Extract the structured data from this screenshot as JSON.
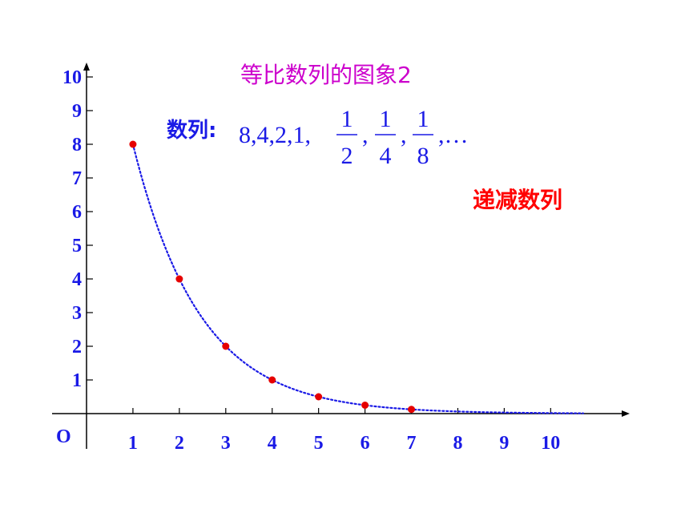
{
  "chart_data": {
    "type": "scatter",
    "title": "等比数列的图象2",
    "origin_label": "O",
    "x_ticks": [
      "1",
      "2",
      "3",
      "4",
      "5",
      "6",
      "7",
      "8",
      "9",
      "10"
    ],
    "y_ticks": [
      "1",
      "2",
      "3",
      "4",
      "5",
      "6",
      "7",
      "8",
      "9",
      "10"
    ],
    "xlim": [
      0,
      11.6
    ],
    "ylim": [
      0,
      10
    ],
    "grid": false,
    "sequence_label": "数列:",
    "sequence_prefix": "8,4,2,1,",
    "sequence_fractions": [
      {
        "numerator": "1",
        "denominator": "2"
      },
      {
        "numerator": "1",
        "denominator": "4"
      },
      {
        "numerator": "1",
        "denominator": "8"
      }
    ],
    "sequence_ellipsis": ",…",
    "annotation": "递减数列",
    "series": [
      {
        "kind": "points",
        "color": "#E60000",
        "x": [
          1,
          2,
          3,
          4,
          5,
          6,
          7
        ],
        "y": [
          8,
          4,
          2,
          1,
          0.5,
          0.25,
          0.125
        ]
      },
      {
        "kind": "curve",
        "style": "dotted",
        "color": "#1A1AE6",
        "x_range": [
          1,
          10.7
        ]
      }
    ],
    "axis_color": "#000000",
    "tick_label_color": "#1A1AE6"
  }
}
